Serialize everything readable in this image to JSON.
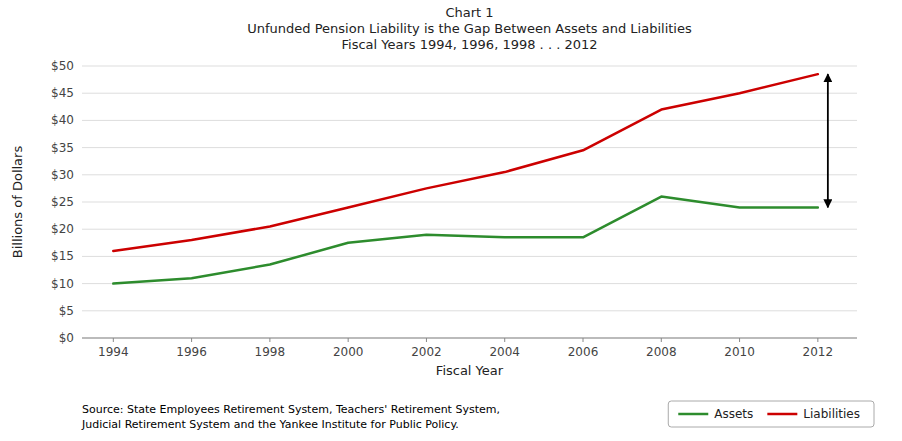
{
  "chart_data": {
    "type": "line",
    "title": [
      "Chart 1",
      "Unfunded Pension Liability is the Gap Between Assets and Liabilities",
      "Fiscal Years 1994, 1996, 1998 . . . 2012"
    ],
    "x_label": "Fiscal Year",
    "y_label": "Billions of Dollars",
    "x": [
      1994,
      1996,
      1998,
      2000,
      2002,
      2004,
      2006,
      2008,
      2010,
      2012
    ],
    "series": [
      {
        "name": "Assets",
        "color": "#2d8c2d",
        "values": [
          10.0,
          11.0,
          13.5,
          17.5,
          19.0,
          18.5,
          18.5,
          26.0,
          24.0,
          24.0
        ]
      },
      {
        "name": "Liabilities",
        "color": "#cc0000",
        "values": [
          16.0,
          18.0,
          20.5,
          24.0,
          27.5,
          30.5,
          34.5,
          42.0,
          45.0,
          48.5
        ]
      }
    ],
    "xlim": [
      1993.2,
      2013.0
    ],
    "xticks": [
      1994,
      1996,
      1998,
      2000,
      2002,
      2004,
      2006,
      2008,
      2010,
      2012
    ],
    "ylim": [
      0,
      50
    ],
    "yticks": [
      {
        "value": 0,
        "label": "$0"
      },
      {
        "value": 5,
        "label": "$5"
      },
      {
        "value": 10,
        "label": "$10"
      },
      {
        "value": 15,
        "label": "$15"
      },
      {
        "value": 20,
        "label": "$20"
      },
      {
        "value": 25,
        "label": "$25"
      },
      {
        "value": 30,
        "label": "$30"
      },
      {
        "value": 35,
        "label": "$35"
      },
      {
        "value": 40,
        "label": "$40"
      },
      {
        "value": 45,
        "label": "$45"
      },
      {
        "value": 50,
        "label": "$50"
      }
    ],
    "grid": true,
    "legend": "lower right",
    "annotations": [
      {
        "text": "Source: State Employees Retirement System, Teachers' Retirement System,\nJudicial Retirement System and the Yankee Institute for Public Policy."
      },
      {
        "arrow": "both",
        "x": 2012,
        "y1": 24.0,
        "y2": 48.5
      }
    ]
  }
}
